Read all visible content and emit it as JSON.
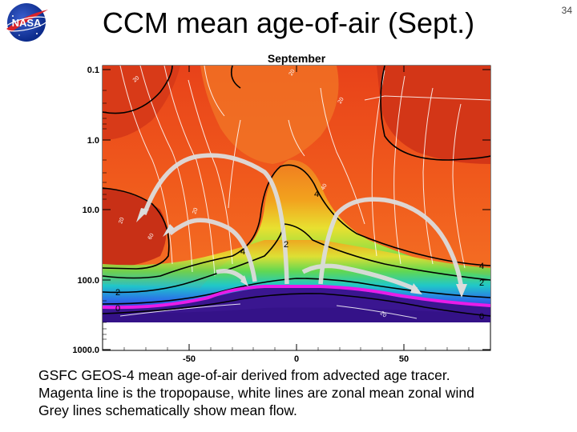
{
  "slide": {
    "title": "CCM mean age-of-air (Sept.)",
    "page_number": "34",
    "caption_lines": [
      "GSFC GEOS-4 mean age-of-air derived from advected age tracer.",
      "Magenta line is the tropopause, white lines are zonal mean zonal wind",
      "Grey lines schematically show mean flow."
    ],
    "logo_text": "NASA"
  },
  "chart_data": {
    "type": "heatmap",
    "title": "September",
    "xlabel": "",
    "ylabel": "",
    "x_ticks": [
      -50,
      0,
      50
    ],
    "y_ticks": [
      "0.1",
      "1.0",
      "10.0",
      "100.0",
      "1000.0"
    ],
    "xlim": [
      -90,
      90
    ],
    "ylim": [
      1000,
      0.1
    ],
    "y_scale": "log",
    "age_contour_labels": [
      "0",
      "2",
      "4"
    ],
    "wind_contour_labels": [
      "20",
      "20",
      "40",
      "20",
      "20",
      "20",
      "60",
      "20"
    ],
    "colors": {
      "tropopause": "#e81ce8",
      "age_contours": "#000000",
      "wind_contours": "#ffffff",
      "flow_arrows": "#dcdcdc"
    }
  }
}
